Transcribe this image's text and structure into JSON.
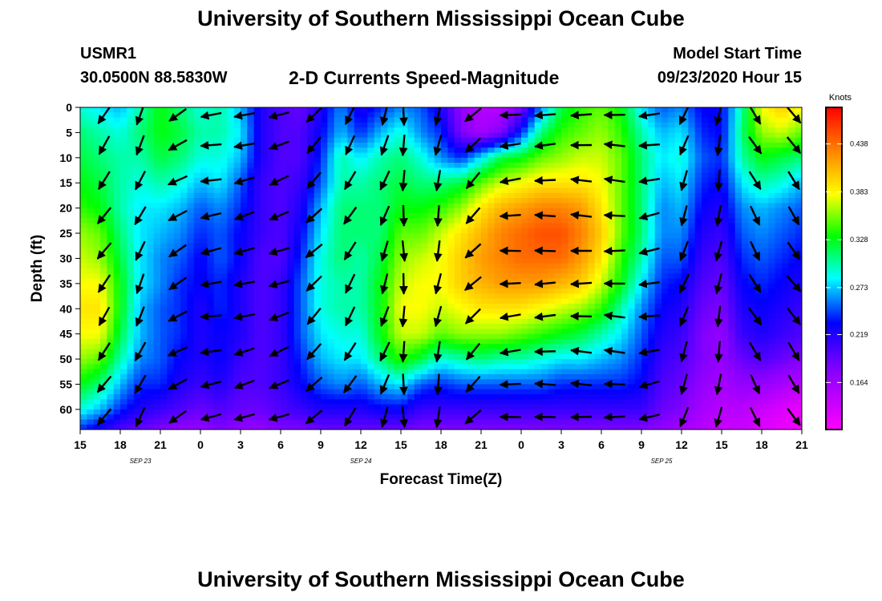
{
  "header": {
    "title": "University of Southern Mississippi Ocean Cube",
    "station": "USMR1",
    "coords": "30.0500N 88.5830W",
    "chart_title": "2-D Currents Speed-Magnitude",
    "model_start_label": "Model Start Time",
    "model_start_value": "09/23/2020 Hour 15"
  },
  "footer": {
    "title": "University of Southern Mississippi Ocean Cube"
  },
  "chart_data": {
    "type": "heatmap",
    "title": "2-D Currents Speed-Magnitude",
    "xlabel": "Forecast Time(Z)",
    "ylabel": "Depth (ft)",
    "x_range_hours": [
      0,
      54
    ],
    "x_ticks": [
      {
        "h": 0,
        "label": "15"
      },
      {
        "h": 3,
        "label": "18"
      },
      {
        "h": 6,
        "label": "21"
      },
      {
        "h": 9,
        "label": "0"
      },
      {
        "h": 12,
        "label": "3"
      },
      {
        "h": 15,
        "label": "6"
      },
      {
        "h": 18,
        "label": "9"
      },
      {
        "h": 21,
        "label": "12"
      },
      {
        "h": 24,
        "label": "15"
      },
      {
        "h": 27,
        "label": "18"
      },
      {
        "h": 30,
        "label": "21"
      },
      {
        "h": 33,
        "label": "0"
      },
      {
        "h": 36,
        "label": "3"
      },
      {
        "h": 39,
        "label": "6"
      },
      {
        "h": 42,
        "label": "9"
      },
      {
        "h": 45,
        "label": "12"
      },
      {
        "h": 48,
        "label": "15"
      },
      {
        "h": 51,
        "label": "18"
      },
      {
        "h": 54,
        "label": "21"
      }
    ],
    "date_labels": [
      {
        "h": 4.5,
        "label": "SEP 23"
      },
      {
        "h": 21,
        "label": "SEP 24"
      },
      {
        "h": 43.5,
        "label": "SEP 25"
      }
    ],
    "y_range": [
      0,
      64
    ],
    "y_ticks": [
      0,
      5,
      10,
      15,
      20,
      25,
      30,
      35,
      40,
      45,
      50,
      55,
      60
    ],
    "colorbar": {
      "title": "Knots",
      "range": [
        0.11,
        0.48
      ],
      "ticks": [
        "0.438",
        "0.383",
        "0.328",
        "0.273",
        "0.219",
        "0.164"
      ]
    },
    "speed_grid": {
      "x_hours": [
        0,
        1.5,
        3,
        4.5,
        6,
        7.5,
        9,
        10.5,
        12,
        13.5,
        15,
        16.5,
        18,
        19.5,
        21,
        22.5,
        24,
        25.5,
        27,
        28.5,
        30,
        31.5,
        33,
        34.5,
        36,
        37.5,
        39,
        40.5,
        42,
        43.5,
        45,
        46.5,
        48,
        49.5,
        51,
        52.5,
        54
      ],
      "depths": [
        0,
        5,
        10,
        15,
        20,
        25,
        30,
        35,
        40,
        45,
        50,
        55,
        60,
        64
      ],
      "values": [
        [
          0.29,
          0.28,
          0.27,
          0.3,
          0.33,
          0.31,
          0.29,
          0.3,
          0.27,
          0.22,
          0.2,
          0.19,
          0.22,
          0.26,
          0.22,
          0.24,
          0.26,
          0.25,
          0.22,
          0.17,
          0.15,
          0.15,
          0.18,
          0.26,
          0.32,
          0.34,
          0.35,
          0.33,
          0.28,
          0.25,
          0.26,
          0.23,
          0.23,
          0.3,
          0.38,
          0.4,
          0.38
        ],
        [
          0.31,
          0.3,
          0.29,
          0.31,
          0.33,
          0.32,
          0.3,
          0.3,
          0.28,
          0.22,
          0.2,
          0.2,
          0.23,
          0.27,
          0.24,
          0.27,
          0.29,
          0.26,
          0.24,
          0.18,
          0.16,
          0.18,
          0.24,
          0.31,
          0.34,
          0.35,
          0.36,
          0.34,
          0.3,
          0.27,
          0.28,
          0.24,
          0.23,
          0.31,
          0.36,
          0.37,
          0.35
        ],
        [
          0.32,
          0.31,
          0.3,
          0.3,
          0.32,
          0.31,
          0.29,
          0.29,
          0.27,
          0.22,
          0.2,
          0.2,
          0.24,
          0.3,
          0.28,
          0.3,
          0.31,
          0.29,
          0.26,
          0.24,
          0.28,
          0.32,
          0.33,
          0.35,
          0.36,
          0.37,
          0.37,
          0.35,
          0.31,
          0.28,
          0.29,
          0.25,
          0.24,
          0.3,
          0.33,
          0.32,
          0.31
        ],
        [
          0.33,
          0.32,
          0.3,
          0.29,
          0.3,
          0.29,
          0.27,
          0.28,
          0.25,
          0.21,
          0.2,
          0.21,
          0.25,
          0.3,
          0.3,
          0.31,
          0.32,
          0.31,
          0.31,
          0.32,
          0.35,
          0.37,
          0.38,
          0.39,
          0.39,
          0.39,
          0.38,
          0.35,
          0.31,
          0.27,
          0.28,
          0.24,
          0.23,
          0.28,
          0.3,
          0.29,
          0.27
        ],
        [
          0.34,
          0.33,
          0.3,
          0.28,
          0.28,
          0.27,
          0.25,
          0.26,
          0.24,
          0.21,
          0.2,
          0.22,
          0.27,
          0.31,
          0.31,
          0.31,
          0.33,
          0.33,
          0.34,
          0.36,
          0.39,
          0.41,
          0.42,
          0.43,
          0.43,
          0.42,
          0.39,
          0.35,
          0.31,
          0.26,
          0.27,
          0.23,
          0.22,
          0.26,
          0.27,
          0.26,
          0.25
        ],
        [
          0.36,
          0.35,
          0.31,
          0.28,
          0.27,
          0.26,
          0.24,
          0.25,
          0.23,
          0.21,
          0.2,
          0.23,
          0.28,
          0.31,
          0.31,
          0.31,
          0.35,
          0.35,
          0.37,
          0.39,
          0.41,
          0.43,
          0.44,
          0.45,
          0.45,
          0.43,
          0.4,
          0.35,
          0.31,
          0.26,
          0.26,
          0.22,
          0.21,
          0.25,
          0.26,
          0.25,
          0.24
        ],
        [
          0.37,
          0.36,
          0.32,
          0.28,
          0.26,
          0.25,
          0.23,
          0.25,
          0.23,
          0.2,
          0.2,
          0.24,
          0.29,
          0.31,
          0.3,
          0.32,
          0.36,
          0.37,
          0.38,
          0.4,
          0.42,
          0.43,
          0.44,
          0.44,
          0.44,
          0.42,
          0.39,
          0.34,
          0.3,
          0.25,
          0.25,
          0.21,
          0.2,
          0.24,
          0.25,
          0.24,
          0.23
        ],
        [
          0.38,
          0.38,
          0.33,
          0.28,
          0.26,
          0.24,
          0.23,
          0.24,
          0.22,
          0.2,
          0.21,
          0.25,
          0.29,
          0.3,
          0.3,
          0.33,
          0.37,
          0.38,
          0.38,
          0.4,
          0.41,
          0.42,
          0.42,
          0.42,
          0.41,
          0.4,
          0.37,
          0.33,
          0.28,
          0.24,
          0.23,
          0.2,
          0.19,
          0.23,
          0.24,
          0.23,
          0.22
        ],
        [
          0.39,
          0.39,
          0.33,
          0.27,
          0.25,
          0.24,
          0.22,
          0.24,
          0.22,
          0.2,
          0.21,
          0.25,
          0.29,
          0.3,
          0.3,
          0.33,
          0.38,
          0.38,
          0.37,
          0.38,
          0.39,
          0.39,
          0.39,
          0.38,
          0.37,
          0.36,
          0.34,
          0.3,
          0.26,
          0.23,
          0.22,
          0.19,
          0.18,
          0.22,
          0.23,
          0.22,
          0.21
        ],
        [
          0.38,
          0.38,
          0.32,
          0.27,
          0.25,
          0.24,
          0.22,
          0.23,
          0.22,
          0.2,
          0.21,
          0.25,
          0.28,
          0.29,
          0.29,
          0.33,
          0.37,
          0.37,
          0.35,
          0.36,
          0.36,
          0.36,
          0.35,
          0.34,
          0.33,
          0.32,
          0.3,
          0.28,
          0.25,
          0.22,
          0.21,
          0.18,
          0.17,
          0.21,
          0.22,
          0.21,
          0.2
        ],
        [
          0.36,
          0.35,
          0.3,
          0.26,
          0.25,
          0.23,
          0.22,
          0.23,
          0.21,
          0.2,
          0.21,
          0.24,
          0.27,
          0.28,
          0.28,
          0.31,
          0.34,
          0.32,
          0.29,
          0.3,
          0.31,
          0.3,
          0.3,
          0.29,
          0.28,
          0.28,
          0.27,
          0.26,
          0.24,
          0.21,
          0.2,
          0.18,
          0.17,
          0.19,
          0.2,
          0.19,
          0.18
        ],
        [
          0.33,
          0.31,
          0.27,
          0.24,
          0.24,
          0.22,
          0.21,
          0.22,
          0.2,
          0.2,
          0.21,
          0.23,
          0.25,
          0.26,
          0.25,
          0.27,
          0.28,
          0.25,
          0.24,
          0.25,
          0.25,
          0.25,
          0.25,
          0.25,
          0.24,
          0.24,
          0.24,
          0.24,
          0.23,
          0.2,
          0.19,
          0.17,
          0.16,
          0.17,
          0.17,
          0.16,
          0.15
        ],
        [
          0.29,
          0.27,
          0.24,
          0.22,
          0.21,
          0.2,
          0.19,
          0.2,
          0.19,
          0.19,
          0.2,
          0.21,
          0.22,
          0.22,
          0.22,
          0.23,
          0.23,
          0.21,
          0.21,
          0.21,
          0.21,
          0.21,
          0.21,
          0.21,
          0.21,
          0.21,
          0.21,
          0.21,
          0.21,
          0.19,
          0.18,
          0.16,
          0.15,
          0.15,
          0.14,
          0.13,
          0.12
        ],
        [
          0.24,
          0.22,
          0.2,
          0.19,
          0.18,
          0.17,
          0.17,
          0.18,
          0.17,
          0.17,
          0.18,
          0.18,
          0.19,
          0.19,
          0.19,
          0.19,
          0.19,
          0.18,
          0.18,
          0.18,
          0.18,
          0.18,
          0.18,
          0.18,
          0.18,
          0.18,
          0.18,
          0.18,
          0.18,
          0.17,
          0.16,
          0.15,
          0.14,
          0.14,
          0.13,
          0.12,
          0.12
        ]
      ]
    },
    "vectors": {
      "x_hours": [
        1.8,
        4.5,
        7.3,
        9.8,
        12.3,
        14.9,
        17.5,
        20.2,
        22.8,
        24.2,
        26.8,
        29.4,
        32.2,
        34.8,
        37.5,
        40.0,
        42.6,
        45.2,
        47.8,
        50.5,
        53.4
      ],
      "depths": [
        1.5,
        7.5,
        14.5,
        21.5,
        28.5,
        35,
        41.5,
        48.5,
        55,
        61.5
      ],
      "direction_deg_per_column": [
        -125,
        -115,
        -150,
        -170,
        -165,
        -160,
        -135,
        -120,
        -110,
        -90,
        -100,
        -135,
        -175,
        -178,
        178,
        177,
        -170,
        -110,
        -100,
        -60,
        -55
      ],
      "note": "direction in screen degrees (0 = east, -90 = south)"
    }
  }
}
